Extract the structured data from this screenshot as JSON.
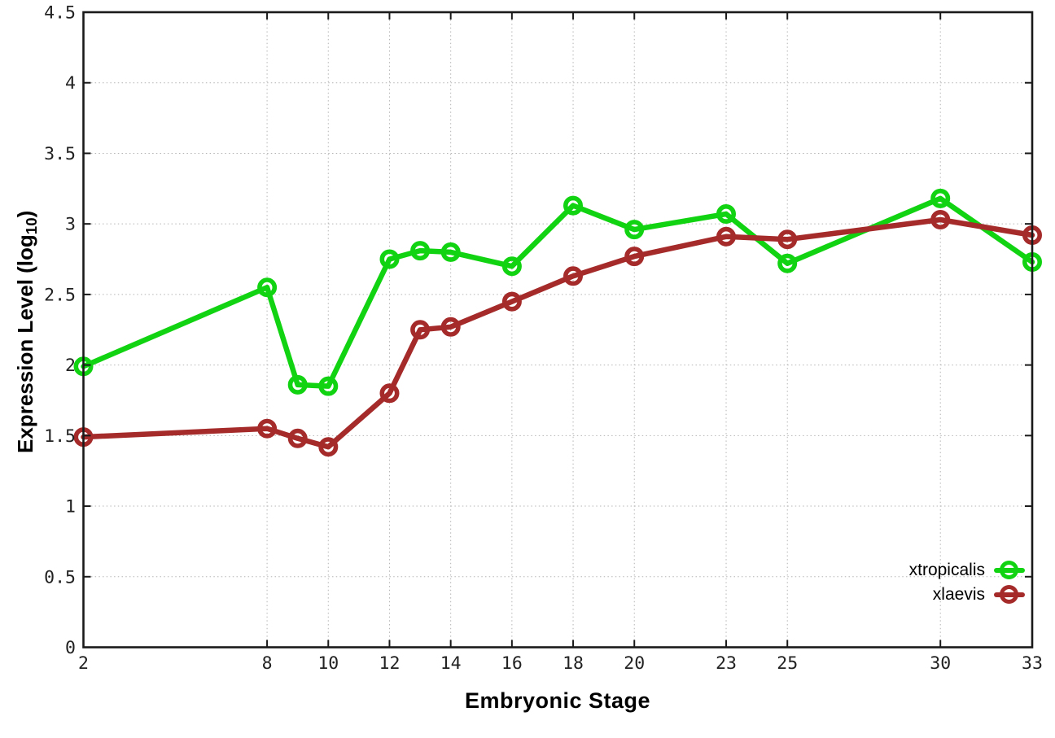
{
  "figure": {
    "background": "#ffffff",
    "xlabel": "Embryonic Stage",
    "ylabel_prefix": "Expression Level (log",
    "ylabel_subscript": "10",
    "ylabel_suffix": ")"
  },
  "chart_data": {
    "type": "line",
    "title": "",
    "xlabel": "Embryonic Stage",
    "ylabel": "Expression Level (log10)",
    "x": [
      2,
      8,
      9,
      10,
      12,
      13,
      14,
      16,
      18,
      20,
      23,
      25,
      30,
      33
    ],
    "series": [
      {
        "name": "xtropicalis",
        "color": "#12d312",
        "marker": "open-circle",
        "values": [
          1.99,
          2.55,
          1.86,
          1.85,
          2.75,
          2.81,
          2.8,
          2.7,
          3.13,
          2.96,
          3.07,
          2.72,
          3.18,
          2.73
        ]
      },
      {
        "name": "xlaevis",
        "color": "#a52a2a",
        "marker": "open-circle",
        "values": [
          1.49,
          1.55,
          1.48,
          1.42,
          1.8,
          2.25,
          2.27,
          2.45,
          2.63,
          2.77,
          2.91,
          2.89,
          3.03,
          2.92
        ]
      }
    ],
    "x_ticks": [
      2,
      8,
      10,
      12,
      14,
      16,
      18,
      20,
      23,
      25,
      30,
      33
    ],
    "y_ticks": [
      0,
      0.5,
      1,
      1.5,
      2,
      2.5,
      3,
      3.5,
      4,
      4.5
    ],
    "xlim": [
      2,
      33
    ],
    "ylim": [
      0,
      4.5
    ],
    "grid": true,
    "grid_style": "dotted",
    "frame_color": "#1a1a1a",
    "grid_color": "#b5b5b5",
    "tick_label_color": "#222222",
    "legend_position": "inside-bottom-right",
    "legend_order": [
      "xtropicalis",
      "xlaevis"
    ]
  }
}
